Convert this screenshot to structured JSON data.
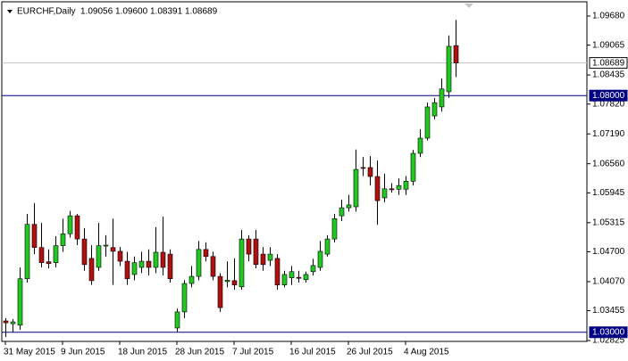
{
  "chart_data": {
    "type": "candlestick",
    "symbol": "EURCHF,Daily",
    "header_values": [
      "1.09056",
      "1.09600",
      "1.08391",
      "1.08689"
    ],
    "categories": [
      "31 May 2015",
      null,
      null,
      null,
      null,
      null,
      null,
      null,
      "9 Jun 2015",
      null,
      null,
      null,
      null,
      null,
      null,
      null,
      "18 Jun 2015",
      null,
      null,
      null,
      null,
      null,
      null,
      null,
      "28 Jun 2015",
      null,
      null,
      null,
      null,
      null,
      null,
      null,
      "7 Jul 2015",
      null,
      null,
      null,
      null,
      null,
      null,
      null,
      "16 Jul 2015",
      null,
      null,
      null,
      null,
      null,
      null,
      null,
      "26 Jul 2015",
      null,
      null,
      null,
      null,
      null,
      null,
      null,
      "4 Aug 2015",
      null,
      null,
      null,
      null,
      null,
      null,
      null
    ],
    "open": [
      1.0324,
      1.0318,
      1.0315,
      1.0413,
      1.0528,
      1.0479,
      1.0449,
      1.0447,
      1.0483,
      1.0508,
      1.0546,
      1.0497,
      1.0456,
      1.0437,
      1.0482,
      1.0479,
      1.0471,
      1.045,
      1.0422,
      1.0437,
      1.045,
      1.0437,
      1.0469,
      1.0465,
      1.0309,
      1.0343,
      1.0403,
      1.0418,
      1.0475,
      1.046,
      1.0418,
      1.0407,
      1.0409,
      1.0396,
      1.0497,
      1.0497,
      1.0465,
      1.0452,
      1.0456,
      1.04,
      1.0415,
      1.0416,
      1.0411,
      1.0428,
      1.0437,
      1.0465,
      1.0497,
      1.0546,
      1.0563,
      1.0565,
      1.0648,
      1.0648,
      1.0629,
      1.0584,
      1.0603,
      1.0602,
      1.0602,
      1.0619,
      1.0678,
      1.071,
      1.0757,
      1.0776,
      1.0808,
      1.09056
    ],
    "high": [
      1.033,
      1.0328,
      1.0437,
      1.055,
      1.0573,
      1.0531,
      1.0475,
      1.0503,
      1.054,
      1.0556,
      1.055,
      1.052,
      1.0484,
      1.0531,
      1.0505,
      1.054,
      1.048,
      1.047,
      1.046,
      1.047,
      1.0475,
      1.0522,
      1.0544,
      1.0475,
      1.035,
      1.041,
      1.044,
      1.0493,
      1.049,
      1.047,
      1.0425,
      1.045,
      1.0456,
      1.0516,
      1.0505,
      1.0516,
      1.048,
      1.048,
      1.0465,
      1.043,
      1.044,
      1.043,
      1.0428,
      1.0455,
      1.0493,
      1.0505,
      1.055,
      1.058,
      1.059,
      1.0686,
      1.067,
      1.0672,
      1.0663,
      1.0635,
      1.0615,
      1.0625,
      1.063,
      1.0685,
      1.0729,
      1.0785,
      1.0795,
      1.0836,
      1.0927,
      1.096
    ],
    "low": [
      1.029,
      1.03,
      1.0305,
      1.0405,
      1.0465,
      1.0437,
      1.0435,
      1.0437,
      1.047,
      1.05,
      1.0484,
      1.043,
      1.04,
      1.043,
      1.046,
      1.04,
      1.044,
      1.04,
      1.041,
      1.0425,
      1.042,
      1.0425,
      1.042,
      1.0405,
      1.03,
      1.033,
      1.0395,
      1.041,
      1.045,
      1.041,
      1.0343,
      1.0395,
      1.039,
      1.039,
      1.045,
      1.0435,
      1.043,
      1.044,
      1.039,
      1.0395,
      1.04,
      1.0405,
      1.0405,
      1.042,
      1.043,
      1.046,
      1.049,
      1.0535,
      1.0555,
      1.0555,
      1.063,
      1.061,
      1.0527,
      1.0575,
      1.0595,
      1.059,
      1.059,
      1.061,
      1.067,
      1.0705,
      1.075,
      1.0766,
      1.0795,
      1.08391
    ],
    "close": [
      1.032,
      1.0322,
      1.0413,
      1.0528,
      1.0479,
      1.0447,
      1.0445,
      1.0483,
      1.0508,
      1.0546,
      1.0497,
      1.0443,
      1.0409,
      1.0483,
      1.0484,
      1.0471,
      1.045,
      1.0413,
      1.0447,
      1.045,
      1.0437,
      1.0469,
      1.0437,
      1.0413,
      1.0343,
      1.0403,
      1.0418,
      1.0475,
      1.046,
      1.0418,
      1.0352,
      1.041,
      1.04,
      1.0497,
      1.0465,
      1.0443,
      1.0443,
      1.0465,
      1.04,
      1.0422,
      1.0428,
      1.0414,
      1.0422,
      1.0441,
      1.0471,
      1.0497,
      1.054,
      1.0563,
      1.0569,
      1.0644,
      1.0647,
      1.0629,
      1.0578,
      1.0603,
      1.0601,
      1.061,
      1.0619,
      1.0678,
      1.071,
      1.0776,
      1.0785,
      1.0814,
      1.0904,
      1.08689
    ],
    "up_color": "#22c722",
    "down_color": "#b01010",
    "ylim": [
      1.02807,
      1.09981
    ],
    "yticks": [
      {
        "value": 1.0968,
        "label": "1.09680"
      },
      {
        "value": 1.09065,
        "label": "1.09065"
      },
      {
        "value": 1.08435,
        "label": "1.08435"
      },
      {
        "value": 1.0782,
        "label": "1.07820"
      },
      {
        "value": 1.0719,
        "label": "1.07190"
      },
      {
        "value": 1.0656,
        "label": "1.06560"
      },
      {
        "value": 1.05945,
        "label": "1.05945"
      },
      {
        "value": 1.05315,
        "label": "1.05315"
      },
      {
        "value": 1.047,
        "label": "1.04700"
      },
      {
        "value": 1.0407,
        "label": "1.04070"
      },
      {
        "value": 1.03455,
        "label": "1.03455"
      },
      {
        "value": 1.02825,
        "label": "1.02825"
      }
    ],
    "levels": [
      {
        "value": 1.08689,
        "label": "1.08689",
        "color": "#c0c0c0"
      },
      {
        "value": 1.08,
        "label": "1.08000",
        "color": "#000080"
      },
      {
        "value": 1.03,
        "label": "1.03000",
        "color": "#000080"
      }
    ]
  }
}
